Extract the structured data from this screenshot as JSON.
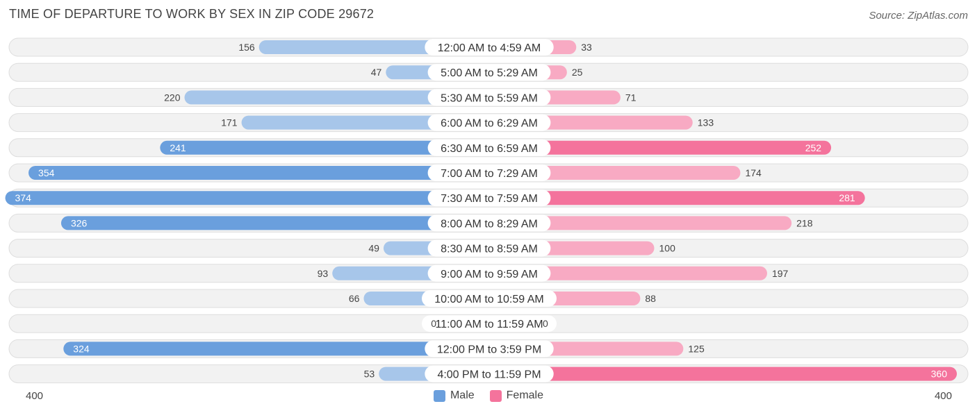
{
  "header": {
    "title": "TIME OF DEPARTURE TO WORK BY SEX IN ZIP CODE 29672",
    "source": "Source: ZipAtlas.com"
  },
  "colors": {
    "male_strong": "#6a9fdd",
    "male_light": "#a7c6ea",
    "female_strong": "#f4739c",
    "female_light": "#f8aac3",
    "row_bg": "#f2f2f2",
    "row_border": "#dddddd",
    "label_bg": "#ffffff"
  },
  "chart_data": {
    "type": "bar",
    "orientation": "horizontal-diverging",
    "title": "TIME OF DEPARTURE TO WORK BY SEX IN ZIP CODE 29672",
    "categories": [
      "12:00 AM to 4:59 AM",
      "5:00 AM to 5:29 AM",
      "5:30 AM to 5:59 AM",
      "6:00 AM to 6:29 AM",
      "6:30 AM to 6:59 AM",
      "7:00 AM to 7:29 AM",
      "7:30 AM to 7:59 AM",
      "8:00 AM to 8:29 AM",
      "8:30 AM to 8:59 AM",
      "9:00 AM to 9:59 AM",
      "10:00 AM to 10:59 AM",
      "11:00 AM to 11:59 AM",
      "12:00 PM to 3:59 PM",
      "4:00 PM to 11:59 PM"
    ],
    "series": [
      {
        "name": "Male",
        "values": [
          156,
          47,
          220,
          171,
          241,
          354,
          374,
          326,
          49,
          93,
          66,
          0,
          324,
          53
        ]
      },
      {
        "name": "Female",
        "values": [
          33,
          25,
          71,
          133,
          252,
          174,
          281,
          218,
          100,
          197,
          88,
          0,
          125,
          360
        ]
      }
    ],
    "xlim": [
      0,
      400
    ],
    "axis_labels": {
      "left": "400",
      "right": "400"
    },
    "legend": {
      "position": "bottom-center",
      "entries": [
        "Male",
        "Female"
      ]
    }
  }
}
